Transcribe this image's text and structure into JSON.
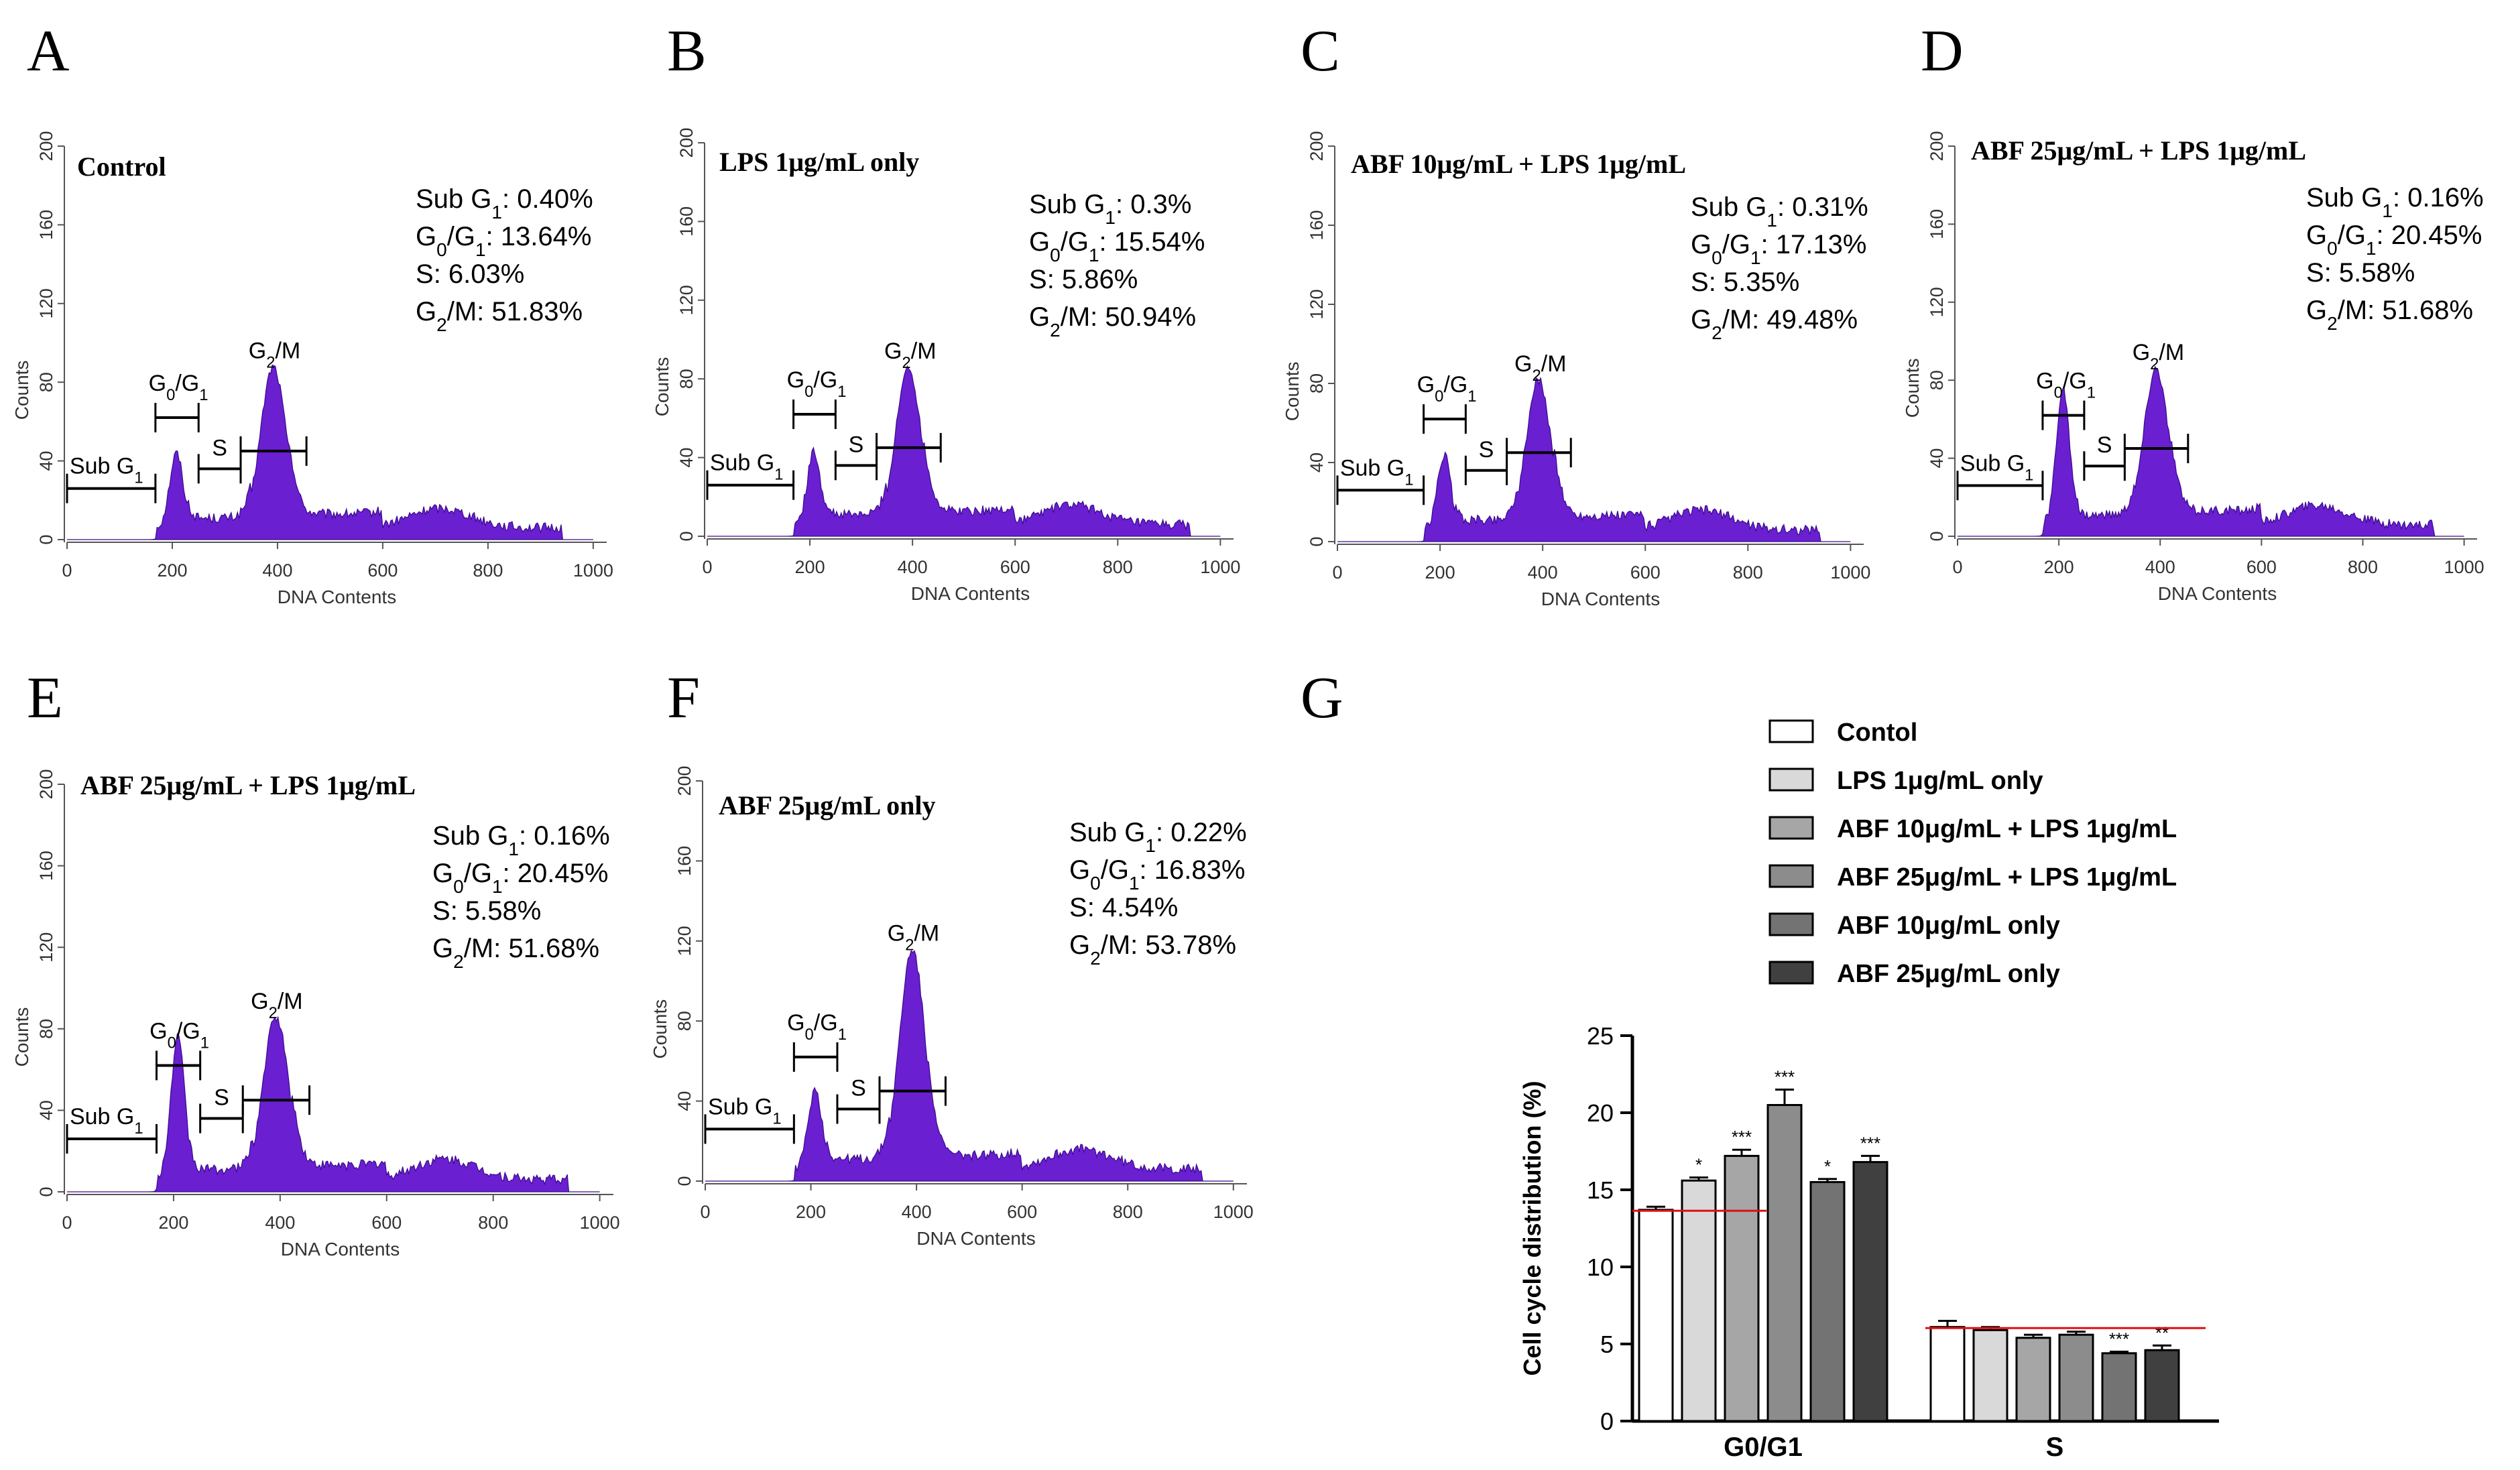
{
  "histogram_axes": {
    "x_label": "DNA Contents",
    "y_label": "Counts",
    "x_ticks": [
      "0",
      "200",
      "400",
      "600",
      "800",
      "1000"
    ],
    "y_ticks": [
      "0",
      "40",
      "80",
      "120",
      "160",
      "200"
    ]
  },
  "gates": {
    "subg1": "Sub G",
    "g0g1": "G",
    "s": "S",
    "g2m": "G"
  },
  "stat_labels": {
    "subg1": "Sub G",
    "g0g1": "G",
    "s": "S",
    "g2m": "G"
  },
  "panels": [
    {
      "letter": "A",
      "title": "Control",
      "stats": {
        "subg1": ": 0.40%",
        "g0g1": ": 13.64%",
        "s": ": 6.03%",
        "g2m": ": 51.83%"
      }
    },
    {
      "letter": "B",
      "title": "LPS 1μg/mL only",
      "stats": {
        "subg1": ": 0.3%",
        "g0g1": ": 15.54%",
        "s": ": 5.86%",
        "g2m": ": 50.94%"
      }
    },
    {
      "letter": "C",
      "title": "ABF 10μg/mL + LPS 1μg/mL",
      "stats": {
        "subg1": ": 0.31%",
        "g0g1": ": 17.13%",
        "s": ": 5.35%",
        "g2m": ": 49.48%"
      }
    },
    {
      "letter": "D",
      "title": "ABF 25μg/mL + LPS 1μg/mL",
      "stats": {
        "subg1": ": 0.16%",
        "g0g1": ": 20.45%",
        "s": ": 5.58%",
        "g2m": ": 51.68%"
      }
    },
    {
      "letter": "E",
      "title": "ABF 25μg/mL + LPS 1μg/mL",
      "stats": {
        "subg1": ": 0.16%",
        "g0g1": ": 20.45%",
        "s": ": 5.58%",
        "g2m": ": 51.68%"
      }
    },
    {
      "letter": "F",
      "title": "ABF 25μg/mL only",
      "stats": {
        "subg1": ": 0.22%",
        "g0g1": ": 16.83%",
        "s": ": 4.54%",
        "g2m": ": 53.78%"
      }
    }
  ],
  "colors": {
    "histogram_fill": "#6a1fd1",
    "reference_line": "#e01010"
  },
  "chart_data": {
    "type": "bar",
    "panel_letter": "G",
    "categories": [
      "G0/G1",
      "S"
    ],
    "ylabel": "Cell cycle distribution (%)",
    "ylim": [
      0,
      25
    ],
    "yticks": [
      "0",
      "5",
      "10",
      "15",
      "20",
      "25"
    ],
    "series": [
      {
        "name": "Contol",
        "values": [
          13.7,
          6.1
        ],
        "errors": [
          0.2,
          0.4
        ],
        "stars": [
          "",
          ""
        ],
        "color": "#ffffff"
      },
      {
        "name": "LPS 1μg/mL  only",
        "values": [
          15.6,
          5.9
        ],
        "errors": [
          0.2,
          0.2
        ],
        "stars": [
          "*",
          ""
        ],
        "color": "#d9d9d9"
      },
      {
        "name": "ABF 10μg/mL + LPS 1μg/mL",
        "values": [
          17.2,
          5.4
        ],
        "errors": [
          0.4,
          0.2
        ],
        "stars": [
          "***",
          ""
        ],
        "color": "#a6a6a6"
      },
      {
        "name": "ABF 25μg/mL + LPS 1μg/mL",
        "values": [
          20.5,
          5.6
        ],
        "errors": [
          1.0,
          0.2
        ],
        "stars": [
          "***",
          ""
        ],
        "color": "#8c8c8c"
      },
      {
        "name": "ABF 10μg/mL only",
        "values": [
          15.5,
          4.4
        ],
        "errors": [
          0.2,
          0.1
        ],
        "stars": [
          "*",
          "***"
        ],
        "color": "#737373"
      },
      {
        "name": "ABF 25μg/mL only",
        "values": [
          16.8,
          4.6
        ],
        "errors": [
          0.4,
          0.3
        ],
        "stars": [
          "***",
          "**"
        ],
        "color": "#404040"
      }
    ],
    "reference_lines": [
      13.64,
      6.03
    ]
  }
}
